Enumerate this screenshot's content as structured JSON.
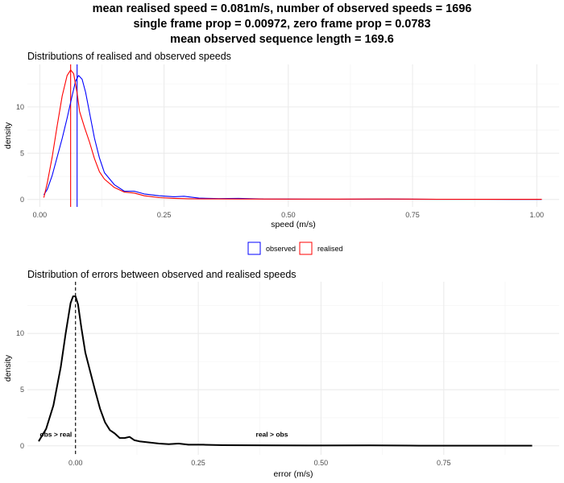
{
  "titles": [
    "mean realised speed = 0.081m/s, number of observed speeds = 1696",
    "single frame prop = 0.00972, zero frame prop = 0.0783",
    "mean observed sequence length = 169.6"
  ],
  "chart_data": [
    {
      "type": "line",
      "title": "Distributions of realised and observed speeds",
      "xlabel": "speed (m/s)",
      "ylabel": "density",
      "xlim": [
        -0.025,
        1.045
      ],
      "ylim": [
        -0.8,
        14.6
      ],
      "xticks": [
        0,
        0.25,
        0.5,
        0.75,
        1
      ],
      "xtick_labels": [
        "0.00",
        "0.25",
        "0.50",
        "0.75",
        "1.00"
      ],
      "yticks": [
        0,
        5,
        10
      ],
      "ytick_labels": [
        "0",
        "5",
        "10"
      ],
      "grid": true,
      "legend": {
        "position": "bottom",
        "entries": [
          "observed",
          "realised"
        ]
      },
      "vlines": [
        {
          "series": "realised",
          "x": 0.062,
          "color": "#ff0000"
        },
        {
          "series": "observed",
          "x": 0.075,
          "color": "#0000ff"
        }
      ],
      "series": [
        {
          "name": "observed",
          "color": "#0000ff",
          "x": [
            0.008,
            0.015,
            0.025,
            0.035,
            0.045,
            0.055,
            0.065,
            0.072,
            0.078,
            0.085,
            0.092,
            0.1,
            0.11,
            0.12,
            0.13,
            0.15,
            0.17,
            0.19,
            0.21,
            0.24,
            0.27,
            0.29,
            0.32,
            0.36,
            0.4,
            0.45,
            0.5,
            0.6,
            0.7,
            0.8,
            0.9,
            1.01
          ],
          "y": [
            0.5,
            1.1,
            2.6,
            4.6,
            6.6,
            8.8,
            11.2,
            12.8,
            13.4,
            13.0,
            11.6,
            9.4,
            6.6,
            4.5,
            2.9,
            1.6,
            0.9,
            0.9,
            0.6,
            0.4,
            0.3,
            0.35,
            0.15,
            0.1,
            0.12,
            0.05,
            0.04,
            0.03,
            0.04,
            0.02,
            0.02,
            0.01
          ]
        },
        {
          "name": "realised",
          "color": "#ff0000",
          "x": [
            0.008,
            0.015,
            0.025,
            0.035,
            0.045,
            0.055,
            0.062,
            0.068,
            0.075,
            0.08,
            0.09,
            0.1,
            0.11,
            0.12,
            0.13,
            0.15,
            0.17,
            0.19,
            0.21,
            0.24,
            0.27,
            0.3,
            0.35,
            0.4,
            0.5,
            0.6,
            0.7,
            0.8,
            0.9,
            1.01
          ],
          "y": [
            0.2,
            1.8,
            4.6,
            8.0,
            11.2,
            13.4,
            14.0,
            13.6,
            11.5,
            9.5,
            7.8,
            6.2,
            4.4,
            3.0,
            2.2,
            1.3,
            0.8,
            0.7,
            0.4,
            0.2,
            0.12,
            0.08,
            0.06,
            0.05,
            0.04,
            0.04,
            0.05,
            0.03,
            0.02,
            0.02
          ]
        }
      ]
    },
    {
      "type": "line",
      "title": "Distribution of errors between observed and realised speeds",
      "xlabel": "error (m/s)",
      "ylabel": "density",
      "xlim": [
        -0.098,
        0.985
      ],
      "ylim": [
        -0.8,
        14.6
      ],
      "xticks": [
        0,
        0.25,
        0.5,
        0.75
      ],
      "xtick_labels": [
        "0.00",
        "0.25",
        "0.50",
        "0.75"
      ],
      "yticks": [
        0,
        5,
        10
      ],
      "ytick_labels": [
        "0",
        "5",
        "10"
      ],
      "grid": true,
      "vlines": [
        {
          "x": 0,
          "style": "dashed",
          "color": "#000000"
        }
      ],
      "annotations": [
        {
          "text": "obs > real",
          "x": -0.04,
          "y": 0.8
        },
        {
          "text": "real > obs",
          "x": 0.4,
          "y": 0.8
        }
      ],
      "series": [
        {
          "name": "",
          "color": "#000000",
          "x": [
            -0.075,
            -0.06,
            -0.045,
            -0.03,
            -0.02,
            -0.01,
            -0.005,
            0.0,
            0.005,
            0.012,
            0.02,
            0.03,
            0.04,
            0.05,
            0.06,
            0.07,
            0.08,
            0.09,
            0.1,
            0.11,
            0.12,
            0.13,
            0.15,
            0.17,
            0.19,
            0.21,
            0.23,
            0.26,
            0.3,
            0.35,
            0.4,
            0.5,
            0.6,
            0.7,
            0.8,
            0.93
          ],
          "y": [
            0.4,
            1.5,
            3.6,
            7.0,
            10.0,
            12.7,
            13.3,
            13.3,
            12.6,
            10.5,
            8.3,
            6.6,
            4.9,
            3.3,
            2.1,
            1.4,
            1.1,
            0.7,
            0.7,
            0.8,
            0.5,
            0.4,
            0.3,
            0.2,
            0.15,
            0.2,
            0.1,
            0.1,
            0.06,
            0.05,
            0.04,
            0.03,
            0.04,
            0.02,
            0.02,
            0.02
          ]
        }
      ]
    }
  ]
}
